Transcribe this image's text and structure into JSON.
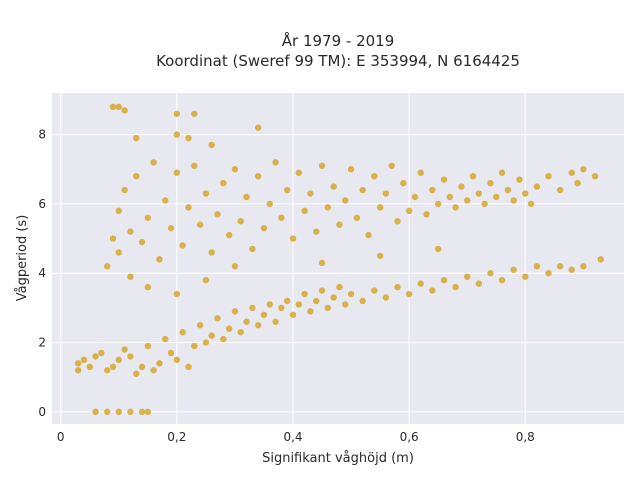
{
  "chart_data": {
    "type": "scatter",
    "title_lines": [
      "År 1979 - 2019",
      "Koordinat (Sweref 99 TM): E 353994, N 6164425"
    ],
    "xlabel": "Signifikant våghöjd (m)",
    "ylabel": "Vågperiod (s)",
    "xlim": [
      -0.015,
      0.97
    ],
    "ylim": [
      -0.35,
      9.2
    ],
    "xticks": [
      0,
      0.2,
      0.4,
      0.6,
      0.8
    ],
    "xtick_labels": [
      "0",
      "0,2",
      "0,4",
      "0,6",
      "0,8"
    ],
    "yticks": [
      0,
      2,
      4,
      6,
      8
    ],
    "ytick_labels": [
      "0",
      "2",
      "4",
      "6",
      "8"
    ],
    "grid": true,
    "background": "#e8e8f0",
    "point_color": "#d4a21e",
    "series": [
      {
        "points": [
          [
            0.06,
            0.0
          ],
          [
            0.08,
            0.0
          ],
          [
            0.1,
            0.0
          ],
          [
            0.12,
            0.0
          ],
          [
            0.14,
            0.0
          ],
          [
            0.15,
            0.0
          ],
          [
            0.09,
            8.8
          ],
          [
            0.1,
            8.8
          ],
          [
            0.11,
            8.7
          ],
          [
            0.2,
            8.6
          ],
          [
            0.23,
            8.6
          ],
          [
            0.13,
            7.9
          ],
          [
            0.2,
            8.0
          ],
          [
            0.22,
            7.9
          ],
          [
            0.26,
            7.7
          ],
          [
            0.34,
            8.2
          ],
          [
            0.03,
            1.4
          ],
          [
            0.04,
            1.5
          ],
          [
            0.05,
            1.3
          ],
          [
            0.03,
            1.2
          ],
          [
            0.06,
            1.6
          ],
          [
            0.07,
            1.7
          ],
          [
            0.08,
            1.2
          ],
          [
            0.09,
            1.3
          ],
          [
            0.1,
            1.5
          ],
          [
            0.11,
            1.8
          ],
          [
            0.12,
            1.6
          ],
          [
            0.13,
            1.1
          ],
          [
            0.14,
            1.3
          ],
          [
            0.15,
            1.9
          ],
          [
            0.16,
            1.2
          ],
          [
            0.17,
            1.4
          ],
          [
            0.18,
            2.1
          ],
          [
            0.19,
            1.7
          ],
          [
            0.2,
            1.5
          ],
          [
            0.21,
            2.3
          ],
          [
            0.22,
            1.3
          ],
          [
            0.23,
            1.9
          ],
          [
            0.24,
            2.5
          ],
          [
            0.25,
            2.0
          ],
          [
            0.26,
            2.2
          ],
          [
            0.27,
            2.7
          ],
          [
            0.28,
            2.1
          ],
          [
            0.29,
            2.4
          ],
          [
            0.3,
            2.9
          ],
          [
            0.31,
            2.3
          ],
          [
            0.32,
            2.6
          ],
          [
            0.33,
            3.0
          ],
          [
            0.34,
            2.5
          ],
          [
            0.35,
            2.8
          ],
          [
            0.36,
            3.1
          ],
          [
            0.37,
            2.6
          ],
          [
            0.38,
            3.0
          ],
          [
            0.39,
            3.2
          ],
          [
            0.4,
            2.8
          ],
          [
            0.41,
            3.1
          ],
          [
            0.42,
            3.4
          ],
          [
            0.43,
            2.9
          ],
          [
            0.44,
            3.2
          ],
          [
            0.45,
            3.5
          ],
          [
            0.46,
            3.0
          ],
          [
            0.47,
            3.3
          ],
          [
            0.48,
            3.6
          ],
          [
            0.49,
            3.1
          ],
          [
            0.5,
            3.4
          ],
          [
            0.52,
            3.2
          ],
          [
            0.54,
            3.5
          ],
          [
            0.56,
            3.3
          ],
          [
            0.58,
            3.6
          ],
          [
            0.6,
            3.4
          ],
          [
            0.62,
            3.7
          ],
          [
            0.64,
            3.5
          ],
          [
            0.66,
            3.8
          ],
          [
            0.68,
            3.6
          ],
          [
            0.7,
            3.9
          ],
          [
            0.72,
            3.7
          ],
          [
            0.74,
            4.0
          ],
          [
            0.76,
            3.8
          ],
          [
            0.78,
            4.1
          ],
          [
            0.8,
            3.9
          ],
          [
            0.82,
            4.2
          ],
          [
            0.84,
            4.0
          ],
          [
            0.86,
            4.2
          ],
          [
            0.88,
            4.1
          ],
          [
            0.9,
            4.2
          ],
          [
            0.93,
            4.4
          ],
          [
            0.08,
            4.2
          ],
          [
            0.09,
            5.0
          ],
          [
            0.1,
            5.8
          ],
          [
            0.1,
            4.6
          ],
          [
            0.11,
            6.4
          ],
          [
            0.12,
            5.2
          ],
          [
            0.13,
            6.8
          ],
          [
            0.14,
            4.9
          ],
          [
            0.15,
            5.6
          ],
          [
            0.16,
            7.2
          ],
          [
            0.17,
            4.4
          ],
          [
            0.18,
            6.1
          ],
          [
            0.19,
            5.3
          ],
          [
            0.2,
            6.9
          ],
          [
            0.21,
            4.8
          ],
          [
            0.22,
            5.9
          ],
          [
            0.23,
            7.1
          ],
          [
            0.24,
            5.4
          ],
          [
            0.25,
            6.3
          ],
          [
            0.26,
            4.6
          ],
          [
            0.27,
            5.7
          ],
          [
            0.28,
            6.6
          ],
          [
            0.29,
            5.1
          ],
          [
            0.3,
            7.0
          ],
          [
            0.31,
            5.5
          ],
          [
            0.32,
            6.2
          ],
          [
            0.33,
            4.7
          ],
          [
            0.34,
            6.8
          ],
          [
            0.35,
            5.3
          ],
          [
            0.36,
            6.0
          ],
          [
            0.37,
            7.2
          ],
          [
            0.38,
            5.6
          ],
          [
            0.39,
            6.4
          ],
          [
            0.4,
            5.0
          ],
          [
            0.41,
            6.9
          ],
          [
            0.42,
            5.8
          ],
          [
            0.43,
            6.3
          ],
          [
            0.44,
            5.2
          ],
          [
            0.45,
            7.1
          ],
          [
            0.46,
            5.9
          ],
          [
            0.47,
            6.5
          ],
          [
            0.48,
            5.4
          ],
          [
            0.49,
            6.1
          ],
          [
            0.5,
            7.0
          ],
          [
            0.51,
            5.6
          ],
          [
            0.52,
            6.4
          ],
          [
            0.53,
            5.1
          ],
          [
            0.54,
            6.8
          ],
          [
            0.55,
            5.9
          ],
          [
            0.56,
            6.3
          ],
          [
            0.57,
            7.1
          ],
          [
            0.58,
            5.5
          ],
          [
            0.59,
            6.6
          ],
          [
            0.6,
            5.8
          ],
          [
            0.61,
            6.2
          ],
          [
            0.62,
            6.9
          ],
          [
            0.63,
            5.7
          ],
          [
            0.64,
            6.4
          ],
          [
            0.65,
            6.0
          ],
          [
            0.66,
            6.7
          ],
          [
            0.67,
            6.2
          ],
          [
            0.68,
            5.9
          ],
          [
            0.69,
            6.5
          ],
          [
            0.7,
            6.1
          ],
          [
            0.71,
            6.8
          ],
          [
            0.72,
            6.3
          ],
          [
            0.73,
            6.0
          ],
          [
            0.74,
            6.6
          ],
          [
            0.75,
            6.2
          ],
          [
            0.76,
            6.9
          ],
          [
            0.77,
            6.4
          ],
          [
            0.78,
            6.1
          ],
          [
            0.79,
            6.7
          ],
          [
            0.8,
            6.3
          ],
          [
            0.81,
            6.0
          ],
          [
            0.82,
            6.5
          ],
          [
            0.84,
            6.8
          ],
          [
            0.86,
            6.4
          ],
          [
            0.88,
            6.9
          ],
          [
            0.9,
            7.0
          ],
          [
            0.89,
            6.6
          ],
          [
            0.92,
            6.8
          ],
          [
            0.3,
            4.2
          ],
          [
            0.25,
            3.8
          ],
          [
            0.2,
            3.4
          ],
          [
            0.15,
            3.6
          ],
          [
            0.12,
            3.9
          ],
          [
            0.45,
            4.3
          ],
          [
            0.55,
            4.5
          ],
          [
            0.65,
            4.7
          ]
        ]
      }
    ]
  }
}
